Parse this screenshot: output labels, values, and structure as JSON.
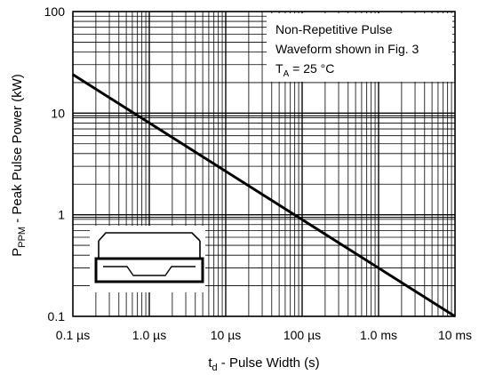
{
  "chart_data": {
    "type": "line",
    "x_scale": "log",
    "y_scale": "log",
    "xlim": [
      1e-07,
      0.01
    ],
    "ylim": [
      0.1,
      100
    ],
    "grid": true,
    "x_ticks": [
      {
        "value": 1e-07,
        "label": "0.1 µs"
      },
      {
        "value": 1e-06,
        "label": "1.0 µs"
      },
      {
        "value": 1e-05,
        "label": "10 µs"
      },
      {
        "value": 0.0001,
        "label": "100 µs"
      },
      {
        "value": 0.001,
        "label": "1.0 ms"
      },
      {
        "value": 0.01,
        "label": "10 ms"
      }
    ],
    "y_ticks": [
      {
        "value": 0.1,
        "label": "0.1"
      },
      {
        "value": 1,
        "label": "1"
      },
      {
        "value": 10,
        "label": "10"
      },
      {
        "value": 100,
        "label": "100"
      }
    ],
    "xlabel": {
      "main": "t",
      "sub": "d",
      "rest": " - Pulse Width (s)"
    },
    "ylabel": {
      "main": "P",
      "sub": "PPM",
      "rest": " - Peak Pulse Power (kW)"
    },
    "series": [
      {
        "x": [
          1e-07,
          0.01
        ],
        "y": [
          24,
          0.1
        ]
      }
    ],
    "annotation": {
      "line1": "Non-Repetitive Pulse",
      "line2": "Waveform shown in Fig. 3",
      "line3_main": "T",
      "line3_sub": "A",
      "line3_rest": " = 25 °C"
    },
    "inset": "package-outline"
  }
}
